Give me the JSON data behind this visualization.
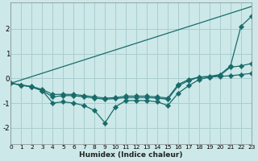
{
  "xlabel": "Humidex (Indice chaleur)",
  "background_color": "#cce8e8",
  "grid_color": "#aacece",
  "line_color": "#1a6b6b",
  "xlim": [
    0,
    23
  ],
  "ylim": [
    -2.65,
    3.05
  ],
  "xticks": [
    0,
    1,
    2,
    3,
    4,
    5,
    6,
    7,
    8,
    9,
    10,
    11,
    12,
    13,
    14,
    15,
    16,
    17,
    18,
    19,
    20,
    21,
    22,
    23
  ],
  "yticks": [
    -2,
    -1,
    0,
    1,
    2
  ],
  "series": [
    {
      "x": [
        0,
        23
      ],
      "y": [
        -0.2,
        2.9
      ],
      "marker": null
    },
    {
      "x": [
        0,
        1,
        2,
        3,
        4,
        5,
        6,
        7,
        8,
        9,
        10,
        11,
        12,
        13,
        14,
        15,
        16,
        17,
        18,
        19,
        20,
        21,
        22,
        23
      ],
      "y": [
        -0.2,
        -0.27,
        -0.35,
        -0.5,
        -0.75,
        -0.7,
        -0.7,
        -0.75,
        -0.8,
        -0.85,
        -0.82,
        -0.78,
        -0.78,
        -0.78,
        -0.8,
        -0.85,
        -0.3,
        -0.1,
        0.05,
        0.08,
        0.15,
        0.5,
        2.1,
        2.5
      ],
      "marker": "D"
    },
    {
      "x": [
        0,
        1,
        2,
        3,
        4,
        5,
        6,
        7,
        8,
        9,
        10,
        11,
        12,
        13,
        14,
        15,
        16,
        17,
        18,
        19,
        20,
        21,
        22,
        23
      ],
      "y": [
        -0.2,
        -0.27,
        -0.33,
        -0.45,
        -0.65,
        -0.65,
        -0.65,
        -0.7,
        -0.75,
        -0.8,
        -0.78,
        -0.72,
        -0.72,
        -0.72,
        -0.75,
        -0.8,
        -0.25,
        -0.05,
        0.05,
        0.05,
        0.12,
        0.45,
        0.5,
        0.6
      ],
      "marker": "D"
    },
    {
      "x": [
        0,
        1,
        2,
        3,
        4,
        5,
        6,
        7,
        8,
        9,
        10,
        11,
        12,
        13,
        14,
        15,
        16,
        17,
        18,
        19,
        20,
        21,
        22,
        23
      ],
      "y": [
        -0.2,
        -0.28,
        -0.35,
        -0.5,
        -1.0,
        -0.95,
        -1.0,
        -1.1,
        -1.3,
        -1.8,
        -1.15,
        -0.9,
        -0.9,
        -0.9,
        -0.95,
        -1.1,
        -0.6,
        -0.3,
        -0.05,
        0.05,
        0.08,
        0.1,
        0.15,
        0.2
      ],
      "marker": "D"
    }
  ]
}
